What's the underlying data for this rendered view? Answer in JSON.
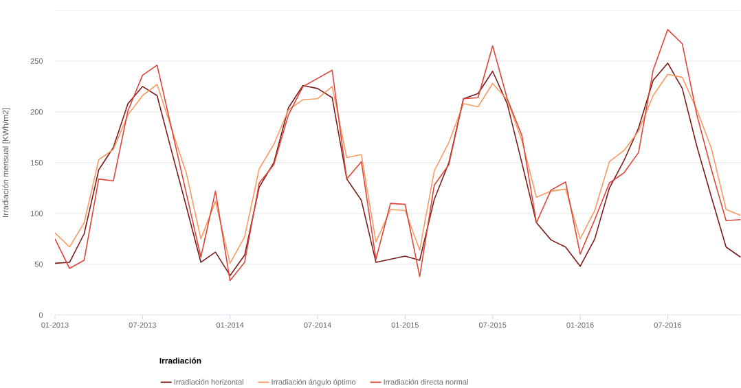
{
  "chart_data": {
    "type": "line",
    "ylabel": "Irradiación mensual [KWh/m2]",
    "legend_title": "Irradiación",
    "x": [
      "2013-01",
      "2013-02",
      "2013-03",
      "2013-04",
      "2013-05",
      "2013-06",
      "2013-07",
      "2013-08",
      "2013-09",
      "2013-10",
      "2013-11",
      "2013-12",
      "2014-01",
      "2014-02",
      "2014-03",
      "2014-04",
      "2014-05",
      "2014-06",
      "2014-07",
      "2014-08",
      "2014-09",
      "2014-10",
      "2014-11",
      "2014-12",
      "2015-01",
      "2015-02",
      "2015-03",
      "2015-04",
      "2015-05",
      "2015-06",
      "2015-07",
      "2015-08",
      "2015-09",
      "2015-10",
      "2015-11",
      "2015-12",
      "2016-01",
      "2016-02",
      "2016-03",
      "2016-04",
      "2016-05",
      "2016-06",
      "2016-07",
      "2016-08",
      "2016-09",
      "2016-10",
      "2016-11",
      "2016-12"
    ],
    "series": [
      {
        "name": "Irradiación horizontal",
        "color": "#7a1a1a",
        "values": [
          51,
          52,
          80,
          143,
          165,
          208,
          225,
          216,
          161,
          107,
          52,
          62,
          39,
          59,
          126,
          150,
          204,
          226,
          223,
          214,
          134,
          113,
          52,
          55,
          58,
          54,
          114,
          150,
          213,
          218,
          240,
          208,
          150,
          91,
          74,
          67,
          48,
          75,
          125,
          152,
          184,
          231,
          248,
          223,
          166,
          116,
          67,
          57
        ]
      },
      {
        "name": "Irradiación ángulo óptimo",
        "color": "#f79a62",
        "values": [
          81,
          67,
          91,
          153,
          163,
          197,
          216,
          227,
          183,
          140,
          75,
          112,
          51,
          77,
          144,
          168,
          202,
          212,
          213,
          225,
          155,
          158,
          72,
          104,
          103,
          64,
          142,
          170,
          208,
          205,
          228,
          212,
          172,
          116,
          122,
          124,
          75,
          103,
          151,
          162,
          181,
          216,
          237,
          234,
          202,
          164,
          104,
          98
        ]
      },
      {
        "name": "Irradiación directa normal",
        "color": "#dc4437",
        "values": [
          75,
          46,
          54,
          134,
          132,
          201,
          236,
          246,
          183,
          120,
          57,
          122,
          34,
          52,
          130,
          148,
          197,
          225,
          233,
          241,
          134,
          151,
          55,
          110,
          109,
          38,
          128,
          148,
          213,
          214,
          265,
          213,
          177,
          91,
          123,
          131,
          60,
          94,
          130,
          140,
          160,
          241,
          281,
          267,
          197,
          143,
          93,
          94
        ]
      }
    ],
    "xlim": [
      "2013-01",
      "2016-12"
    ],
    "xticks": [
      {
        "value": "2013-01",
        "label": "01-2013"
      },
      {
        "value": "2013-07",
        "label": "07-2013"
      },
      {
        "value": "2014-01",
        "label": "01-2014"
      },
      {
        "value": "2014-07",
        "label": "07-2014"
      },
      {
        "value": "2015-01",
        "label": "01-2015"
      },
      {
        "value": "2015-07",
        "label": "07-2015"
      },
      {
        "value": "2016-01",
        "label": "01-2016"
      },
      {
        "value": "2016-07",
        "label": "07-2016"
      }
    ],
    "ylim": [
      0,
      300
    ],
    "yticks": [
      0,
      50,
      100,
      150,
      200,
      250
    ],
    "grid": "y",
    "legend": "bottom"
  }
}
